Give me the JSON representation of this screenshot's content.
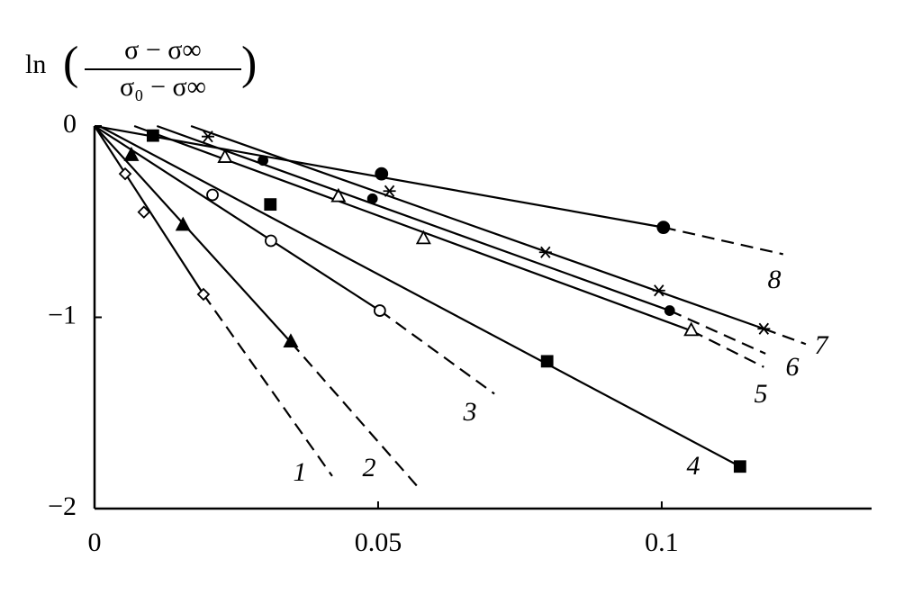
{
  "chart_data": {
    "type": "scatter",
    "y_label": {
      "prefix": "ln",
      "numerator": "σ − σ∞",
      "denominator": "σ₀ − σ∞"
    },
    "xlim": [
      0,
      0.137
    ],
    "ylim": [
      -2,
      0
    ],
    "xticks": [
      0,
      0.05,
      0.1
    ],
    "yticks": [
      {
        "value": -2,
        "label": "−2"
      },
      {
        "value": -1,
        "label": "−1"
      },
      0
    ],
    "color": "#000000",
    "series": [
      {
        "name": "1",
        "marker": "diamond-open",
        "x": [
          0.0054,
          0.0087,
          0.0192
        ],
        "values": [
          -0.25,
          -0.45,
          -0.88
        ],
        "line": {
          "x": [
            0,
            0.0192
          ],
          "y": [
            0,
            -0.88
          ]
        },
        "dashed": {
          "x": [
            0.0192,
            0.0419
          ],
          "y": [
            -0.88,
            -1.83
          ]
        }
      },
      {
        "name": "2",
        "marker": "triangle-filled",
        "x": [
          0.0065,
          0.0156,
          0.0346
        ],
        "values": [
          -0.155,
          -0.52,
          -1.13
        ],
        "line": {
          "x": [
            0,
            0.0346
          ],
          "y": [
            0,
            -1.13
          ]
        },
        "dashed": {
          "x": [
            0.0346,
            0.0568
          ],
          "y": [
            -1.13,
            -1.88
          ]
        }
      },
      {
        "name": "3",
        "marker": "circle-open",
        "x": [
          0.0208,
          0.0311,
          0.0503
        ],
        "values": [
          -0.36,
          -0.6,
          -0.965
        ],
        "line": {
          "x": [
            0,
            0.0503
          ],
          "y": [
            0,
            -0.965
          ]
        },
        "dashed": {
          "x": [
            0.0503,
            0.0705
          ],
          "y": [
            -0.965,
            -1.4
          ]
        }
      },
      {
        "name": "4",
        "marker": "square-filled",
        "x": [
          0.0103,
          0.031,
          0.0798,
          0.1138
        ],
        "values": [
          -0.05,
          -0.41,
          -1.23,
          -1.78
        ],
        "line": {
          "x": [
            0.0008,
            0.1138
          ],
          "y": [
            0,
            -1.78
          ]
        }
      },
      {
        "name": "5",
        "marker": "triangle-open",
        "x": [
          0.023,
          0.043,
          0.058,
          0.1052
        ],
        "values": [
          -0.165,
          -0.37,
          -0.59,
          -1.07
        ],
        "line": {
          "x": [
            0.007,
            0.1052
          ],
          "y": [
            0,
            -1.07
          ]
        },
        "dashed": {
          "x": [
            0.1052,
            0.118
          ],
          "y": [
            -1.07,
            -1.26
          ]
        }
      },
      {
        "name": "6",
        "marker": "circle-small",
        "x": [
          0.0297,
          0.049,
          0.1014
        ],
        "values": [
          -0.18,
          -0.38,
          -0.965
        ],
        "line": {
          "x": [
            0.011,
            0.1014
          ],
          "y": [
            0,
            -0.965
          ]
        },
        "dashed": {
          "x": [
            0.1014,
            0.1183
          ],
          "y": [
            -0.965,
            -1.19
          ]
        }
      },
      {
        "name": "7",
        "marker": "asterisk",
        "x": [
          0.02,
          0.052,
          0.0795,
          0.0995,
          0.118
        ],
        "values": [
          -0.055,
          -0.34,
          -0.66,
          -0.86,
          -1.06
        ],
        "line": {
          "x": [
            0.017,
            0.118
          ],
          "y": [
            0,
            -1.06
          ]
        },
        "dashed": {
          "x": [
            0.118,
            0.1254
          ],
          "y": [
            -1.06,
            -1.14
          ]
        }
      },
      {
        "name": "8",
        "marker": "circle-filled",
        "x": [
          0.0506,
          0.1003
        ],
        "values": [
          -0.25,
          -0.53
        ],
        "line": {
          "x": [
            0,
            0.1003
          ],
          "y": [
            0,
            -0.53
          ]
        },
        "dashed": {
          "x": [
            0.1003,
            0.1214
          ],
          "y": [
            -0.53,
            -0.67
          ]
        }
      }
    ]
  }
}
